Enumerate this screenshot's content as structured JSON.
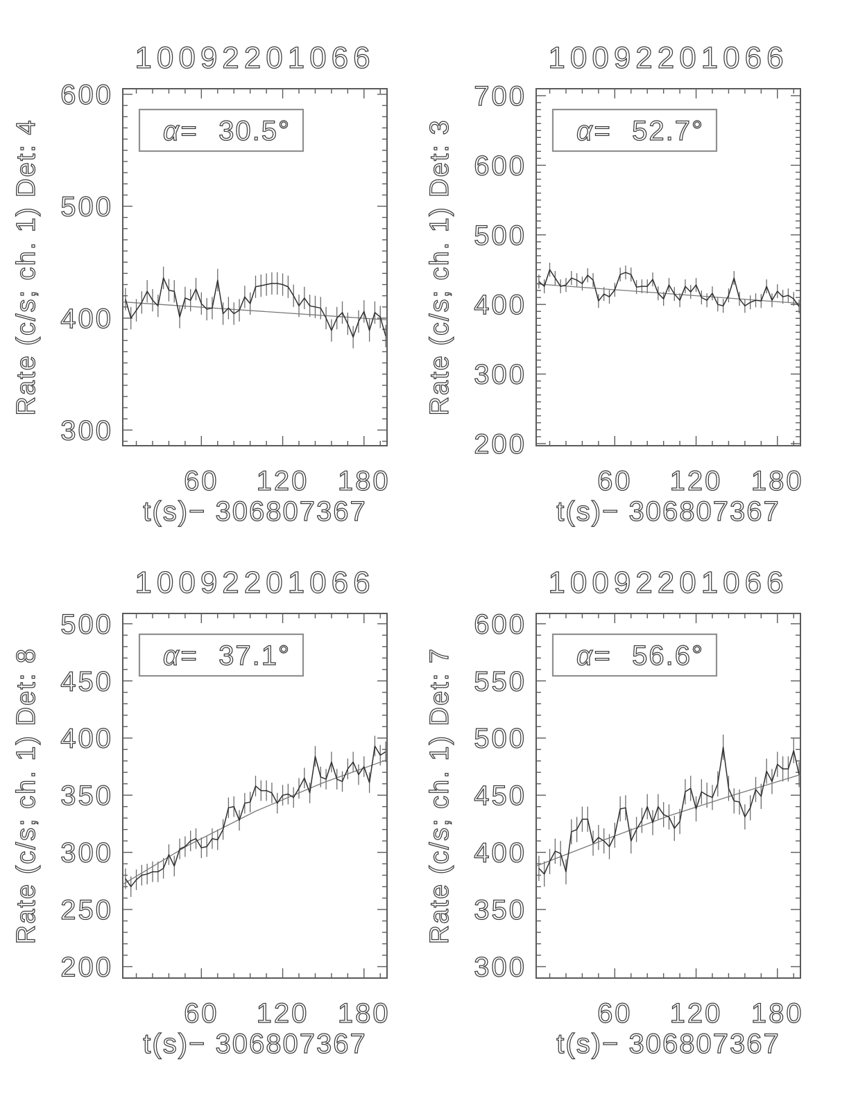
{
  "page": {
    "background": "#ffffff",
    "burst_id": "10092201066"
  },
  "colors": {
    "frame": "#5a5a5a",
    "tick": "#5a5a5a",
    "text": "#3c3c3c",
    "data_line": "#2e2e2e",
    "error_bar": "#6b6b6b",
    "fit_line": "#787878",
    "annotation_border": "#8f8f8f"
  },
  "chart_data": [
    {
      "id": "det4",
      "type": "line",
      "position": "top-left",
      "title": "10092201066",
      "ylabel": "Rate (c/s; ch. 1) Det: 4",
      "xlabel": "t(s)−  306807367",
      "detector": "4",
      "annotation_alpha": "α=",
      "annotation_value": "30.5°",
      "xlim": [
        2,
        197
      ],
      "ylim": [
        286,
        605
      ],
      "x_major_ticks": [
        60,
        120,
        180
      ],
      "x_minor_step": 12,
      "y_major_ticks": [
        300,
        400,
        500,
        600
      ],
      "y_minor_step": 10,
      "x_start": 4,
      "x_step": 4,
      "error_bar": 10,
      "values": [
        417,
        400,
        407,
        414,
        424,
        416,
        411,
        436,
        425,
        424,
        401,
        418,
        416,
        426,
        413,
        408,
        409,
        434,
        404,
        409,
        404,
        407,
        419,
        413,
        428,
        429,
        430,
        431,
        431,
        430,
        428,
        420,
        411,
        418,
        411,
        410,
        409,
        400,
        389,
        400,
        405,
        395,
        383,
        397,
        406,
        389,
        405,
        401,
        384
      ],
      "fit": {
        "x": [
          2,
          197
        ],
        "y": [
          414.5,
          398.5
        ]
      }
    },
    {
      "id": "det3",
      "type": "line",
      "position": "top-right",
      "title": "10092201066",
      "ylabel": "Rate (c/s; ch. 1) Det: 3",
      "xlabel": "t(s)−  306807367",
      "detector": "3",
      "annotation_alpha": "α=",
      "annotation_value": "52.7°",
      "xlim": [
        2,
        197
      ],
      "ylim": [
        197,
        710
      ],
      "x_major_ticks": [
        60,
        120,
        180
      ],
      "x_minor_step": 12,
      "y_major_ticks": [
        200,
        300,
        400,
        500,
        600,
        700
      ],
      "y_minor_step": 10,
      "x_start": 4,
      "x_step": 4,
      "error_bar": 10,
      "values": [
        433,
        426,
        450,
        438,
        426,
        428,
        438,
        435,
        430,
        442,
        435,
        405,
        415,
        411,
        421,
        443,
        446,
        443,
        425,
        426,
        426,
        436,
        416,
        408,
        428,
        415,
        406,
        426,
        418,
        428,
        410,
        406,
        416,
        400,
        398,
        413,
        438,
        408,
        398,
        403,
        406,
        405,
        426,
        406,
        419,
        411,
        413,
        408,
        397
      ],
      "fit": {
        "x": [
          2,
          197
        ],
        "y": [
          429.5,
          401.5
        ]
      }
    },
    {
      "id": "det8",
      "type": "line",
      "position": "bottom-left",
      "title": "10092201066",
      "ylabel": "Rate (c/s; ch. 1) Det: 8",
      "xlabel": "t(s)−  306807367",
      "detector": "8",
      "annotation_alpha": "α=",
      "annotation_value": "37.1°",
      "xlim": [
        2,
        197
      ],
      "ylim": [
        190,
        509
      ],
      "x_major_ticks": [
        60,
        120,
        180
      ],
      "x_minor_step": 12,
      "y_major_ticks": [
        200,
        250,
        300,
        350,
        400,
        450,
        500
      ],
      "y_minor_step": 10,
      "x_start": 4,
      "x_step": 4,
      "error_bar": 9,
      "values": [
        277,
        270,
        276,
        280,
        281,
        283,
        283,
        286,
        298,
        288,
        303,
        305,
        310,
        312,
        304,
        305,
        312,
        311,
        320,
        339,
        340,
        328,
        343,
        344,
        358,
        354,
        354,
        352,
        343,
        350,
        351,
        348,
        356,
        365,
        352,
        384,
        366,
        364,
        379,
        364,
        362,
        373,
        379,
        368,
        375,
        361,
        393,
        385,
        388
      ],
      "fit": {
        "x": [
          2,
          50,
          100,
          150,
          197
        ],
        "y": [
          272,
          306,
          336,
          361,
          381
        ]
      }
    },
    {
      "id": "det7",
      "type": "line",
      "position": "bottom-right",
      "title": "10092201066",
      "ylabel": "Rate (c/s; ch. 1) Det: 7",
      "xlabel": "t(s)−  306807367",
      "detector": "7",
      "annotation_alpha": "α=",
      "annotation_value": "56.6°",
      "xlim": [
        2,
        197
      ],
      "ylim": [
        290,
        609
      ],
      "x_major_ticks": [
        60,
        120,
        180
      ],
      "x_minor_step": 12,
      "y_major_ticks": [
        300,
        350,
        400,
        450,
        500,
        550,
        600
      ],
      "y_minor_step": 10,
      "x_start": 4,
      "x_step": 4,
      "error_bar": 11,
      "values": [
        386,
        381,
        392,
        401,
        399,
        383,
        418,
        420,
        429,
        429,
        408,
        413,
        410,
        405,
        415,
        438,
        439,
        410,
        420,
        428,
        440,
        426,
        440,
        433,
        431,
        421,
        427,
        453,
        456,
        438,
        453,
        450,
        448,
        460,
        492,
        456,
        445,
        444,
        431,
        439,
        455,
        449,
        471,
        462,
        477,
        473,
        473,
        489,
        468
      ],
      "fit": {
        "x": [
          2,
          50,
          100,
          150,
          197
        ],
        "y": [
          388,
          410,
          432,
          451,
          468
        ]
      }
    }
  ]
}
